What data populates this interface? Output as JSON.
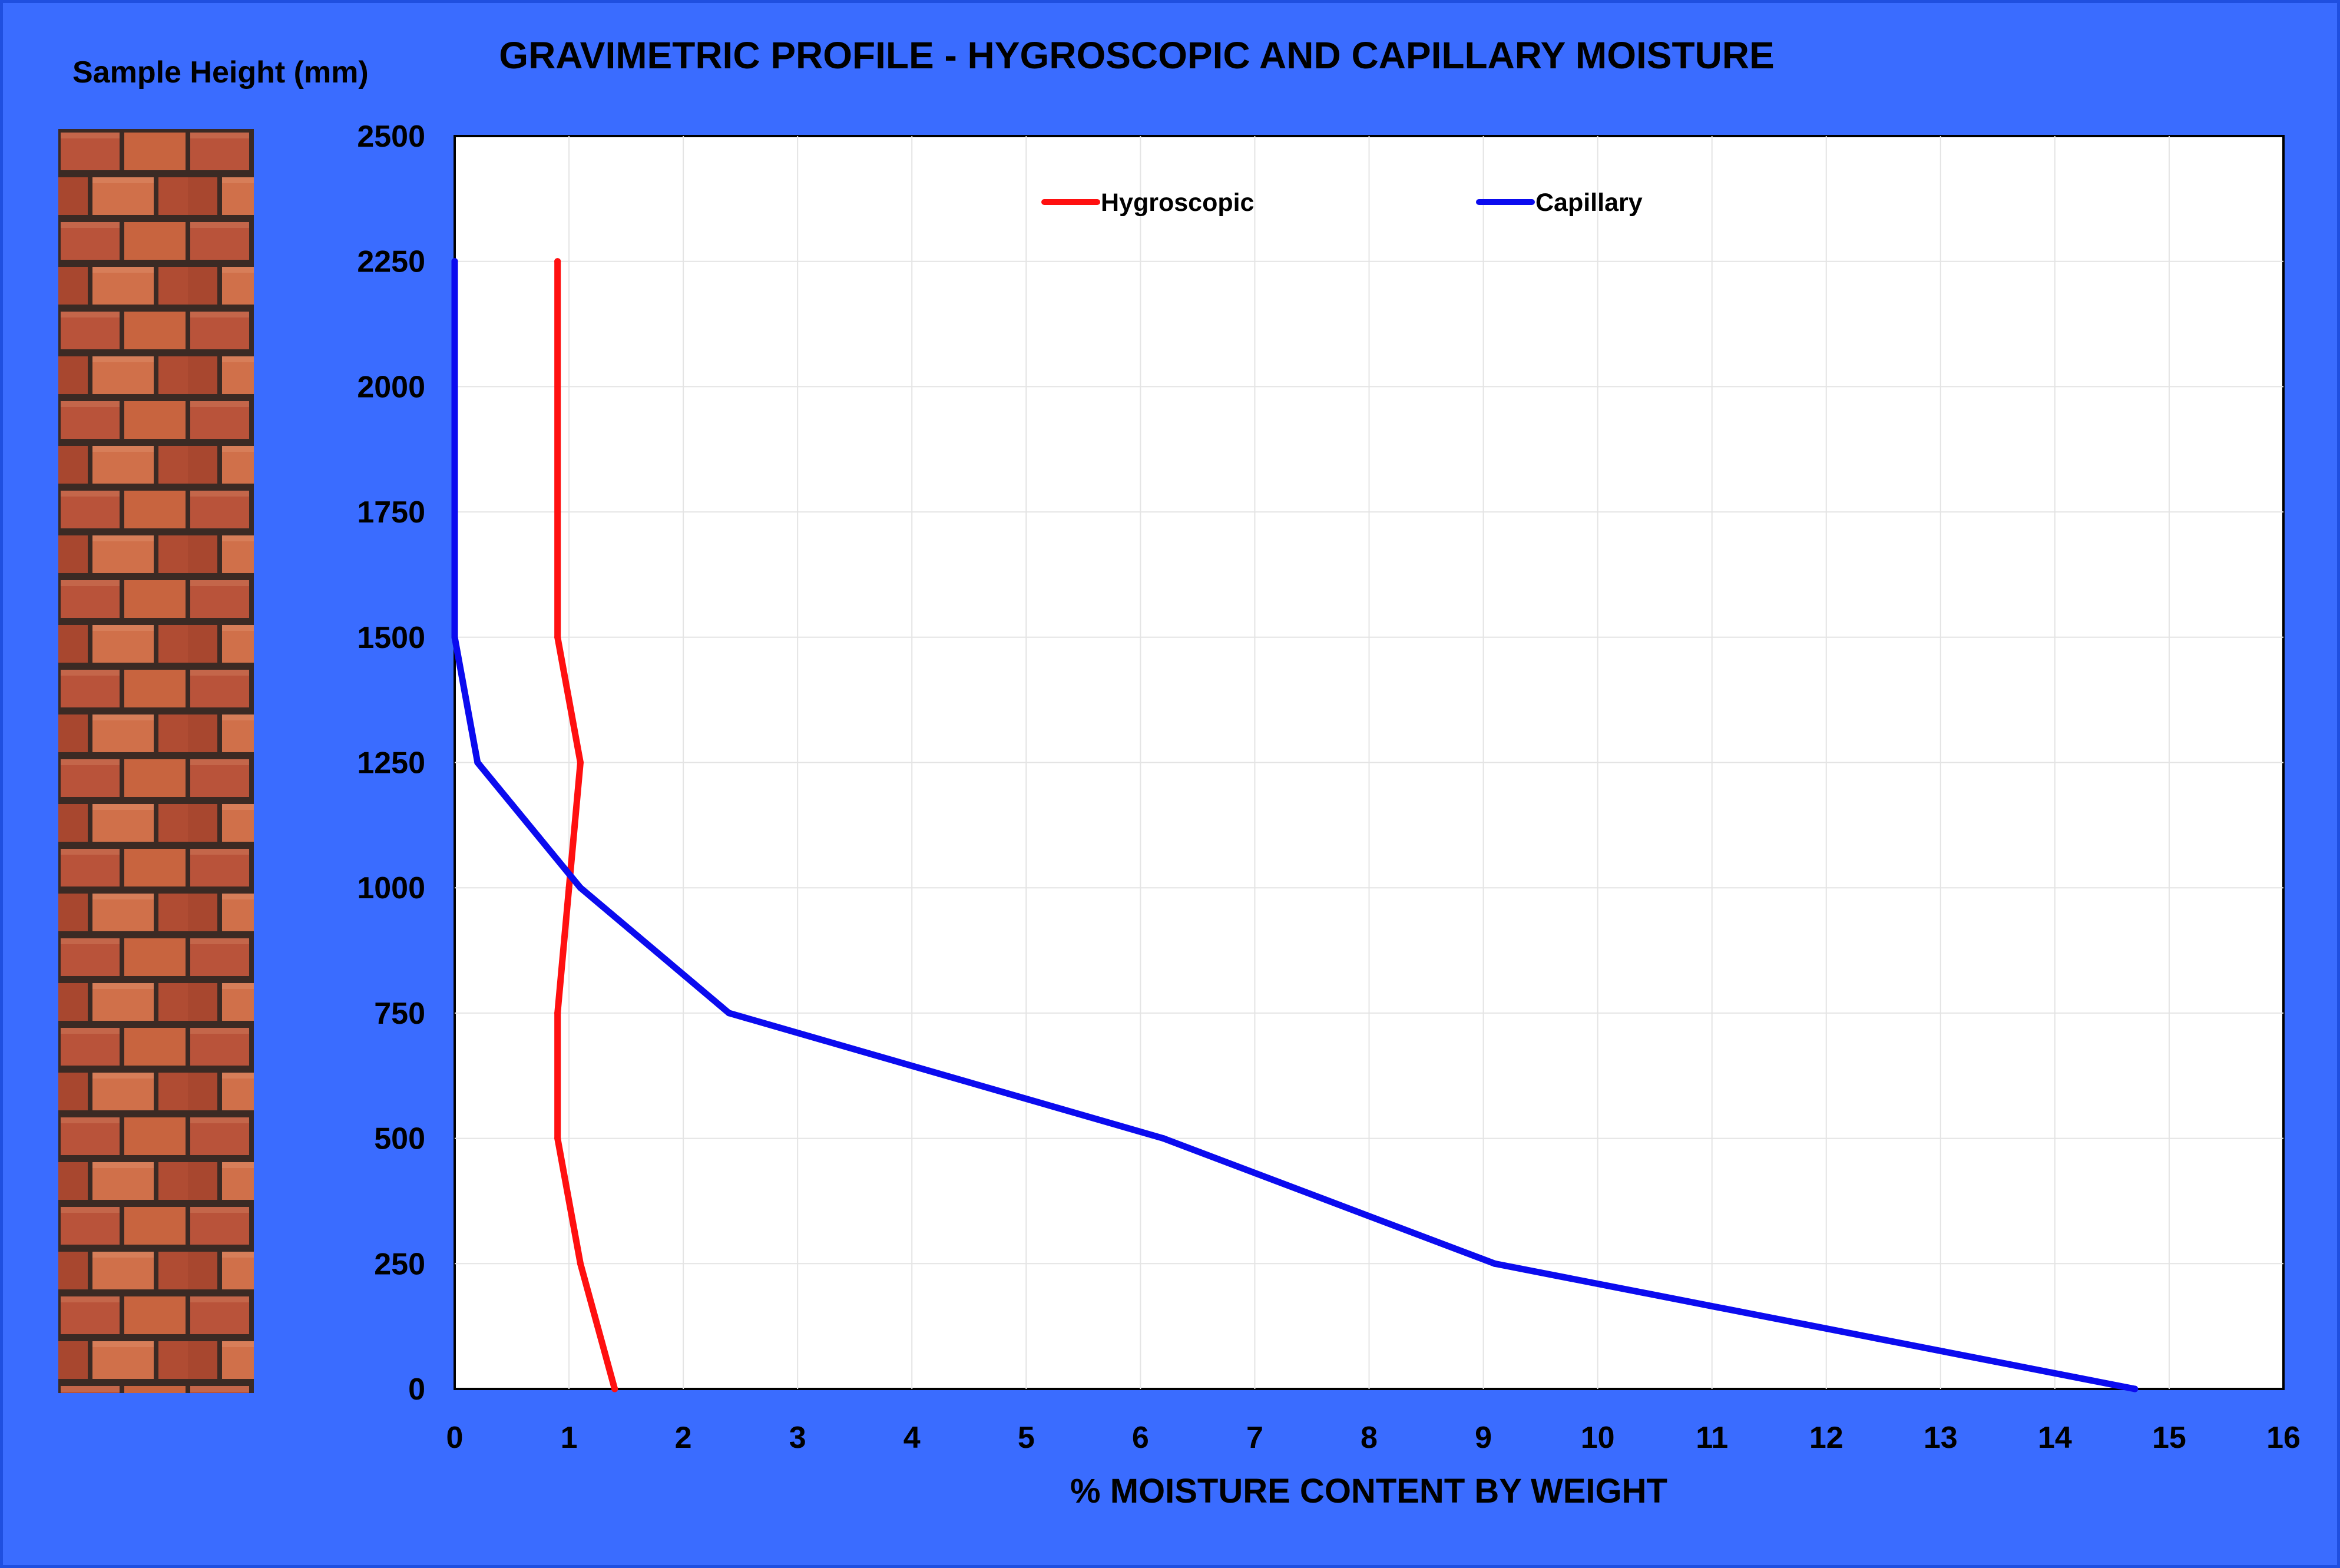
{
  "side_label": "Sample Height (mm)",
  "colors": {
    "background": "#3a6cff",
    "hygroscopic": "#ff1010",
    "capillary": "#0b0bef",
    "plot_bg": "#ffffff"
  },
  "wall_image": {
    "icon": "brick-wall-texture"
  },
  "chart_data": {
    "type": "line",
    "title": "GRAVIMETRIC PROFILE - HYGROSCOPIC AND CAPILLARY MOISTURE",
    "xlabel": "%  MOISTURE CONTENT BY WEIGHT",
    "ylabel": "Sample Height (mm)",
    "xlim": [
      0,
      16
    ],
    "ylim": [
      0,
      2500
    ],
    "xticks": [
      0,
      1,
      2,
      3,
      4,
      5,
      6,
      7,
      8,
      9,
      10,
      11,
      12,
      13,
      14,
      15,
      16
    ],
    "yticks": [
      0,
      250,
      500,
      750,
      1000,
      1250,
      1500,
      1750,
      2000,
      2250,
      2500
    ],
    "grid": true,
    "legend_position": "top",
    "series": [
      {
        "name": "Hygroscopic",
        "color": "#ff1010",
        "x": [
          1.4,
          1.1,
          0.9,
          0.9,
          1.0,
          1.1,
          0.9,
          0.9
        ],
        "y": [
          0,
          250,
          500,
          750,
          1000,
          1250,
          1500,
          2250
        ]
      },
      {
        "name": "Capillary",
        "color": "#0b0bef",
        "x": [
          14.7,
          9.1,
          6.2,
          2.4,
          1.1,
          0.2,
          0.0,
          0.0
        ],
        "y": [
          0,
          250,
          500,
          750,
          1000,
          1250,
          1500,
          2250
        ]
      }
    ]
  }
}
